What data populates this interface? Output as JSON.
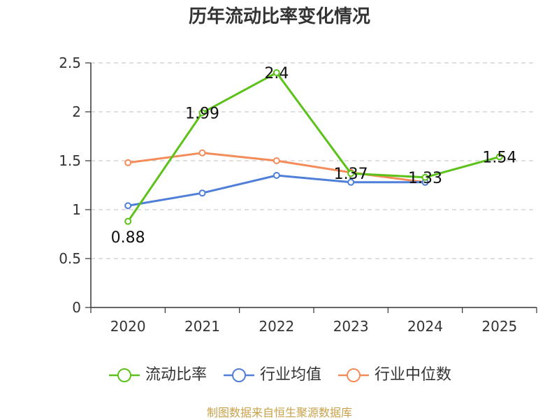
{
  "chart_data": {
    "type": "line",
    "title": "历年流动比率变化情况",
    "categories": [
      "2020",
      "2021",
      "2022",
      "2023",
      "2024",
      "2025"
    ],
    "ylim": [
      0,
      2.5
    ],
    "yticks": [
      0,
      0.5,
      1,
      1.5,
      2,
      2.5
    ],
    "ytick_labels": [
      "0",
      "0.5",
      "1",
      "1.5",
      "2",
      "2.5"
    ],
    "grid": true,
    "legend_position": "bottom",
    "series": [
      {
        "name": "流动比率",
        "color": "#5cc21a",
        "values": [
          0.88,
          1.99,
          2.4,
          1.37,
          1.33,
          1.54
        ],
        "labels": [
          "0.88",
          "1.99",
          "2.4",
          "1.37",
          "1.33",
          "1.54"
        ],
        "show_labels": true
      },
      {
        "name": "行业均值",
        "color": "#4f7fd8",
        "values": [
          1.04,
          1.17,
          1.35,
          1.28,
          1.28,
          null
        ],
        "show_labels": false
      },
      {
        "name": "行业中位数",
        "color": "#f48c5a",
        "values": [
          1.48,
          1.58,
          1.5,
          1.38,
          1.28,
          null
        ],
        "show_labels": false
      }
    ]
  },
  "source_text": "制图数据来自恒生聚源数据库"
}
